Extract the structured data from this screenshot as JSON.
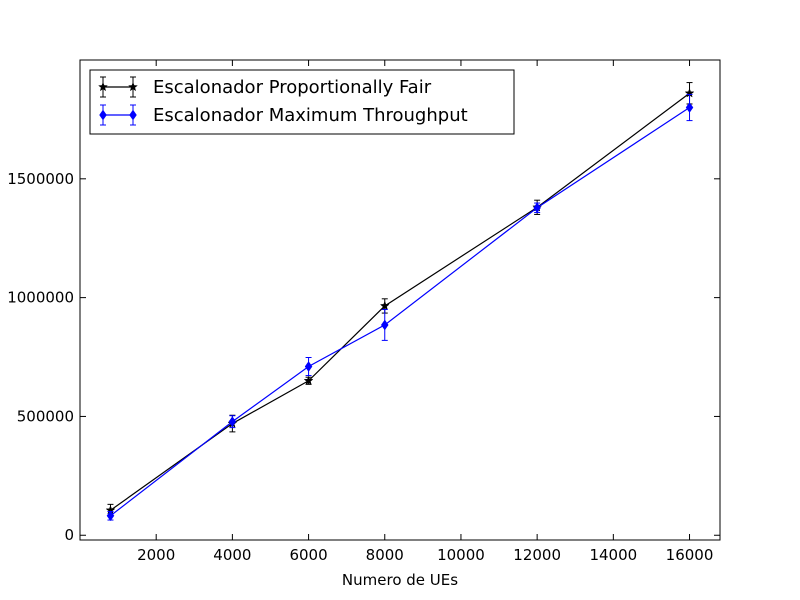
{
  "chart_data": {
    "type": "line",
    "title": "",
    "xlabel": "Numero de UEs",
    "ylabel": "",
    "xlim": [
      0,
      16800
    ],
    "ylim": [
      -20000,
      2000000
    ],
    "xticks": [
      2000,
      4000,
      6000,
      8000,
      10000,
      12000,
      14000,
      16000
    ],
    "yticks": [
      0,
      500000,
      1000000,
      1500000
    ],
    "grid": false,
    "legend_position": "top-left",
    "series": [
      {
        "name": "Escalonador Proportionally Fair",
        "color": "#000000",
        "marker": "star",
        "x": [
          800,
          4000,
          6000,
          8000,
          12000,
          16000
        ],
        "y": [
          105000,
          470000,
          650000,
          965000,
          1380000,
          1860000
        ],
        "err": [
          25000,
          35000,
          15000,
          30000,
          30000,
          45000
        ]
      },
      {
        "name": "Escalonador Maximum Throughput",
        "color": "#0000ff",
        "marker": "diamond",
        "x": [
          800,
          4000,
          6000,
          8000,
          12000,
          16000
        ],
        "y": [
          82000,
          478000,
          710000,
          885000,
          1378000,
          1800000
        ],
        "err": [
          18000,
          25000,
          38000,
          65000,
          20000,
          55000
        ]
      }
    ]
  }
}
